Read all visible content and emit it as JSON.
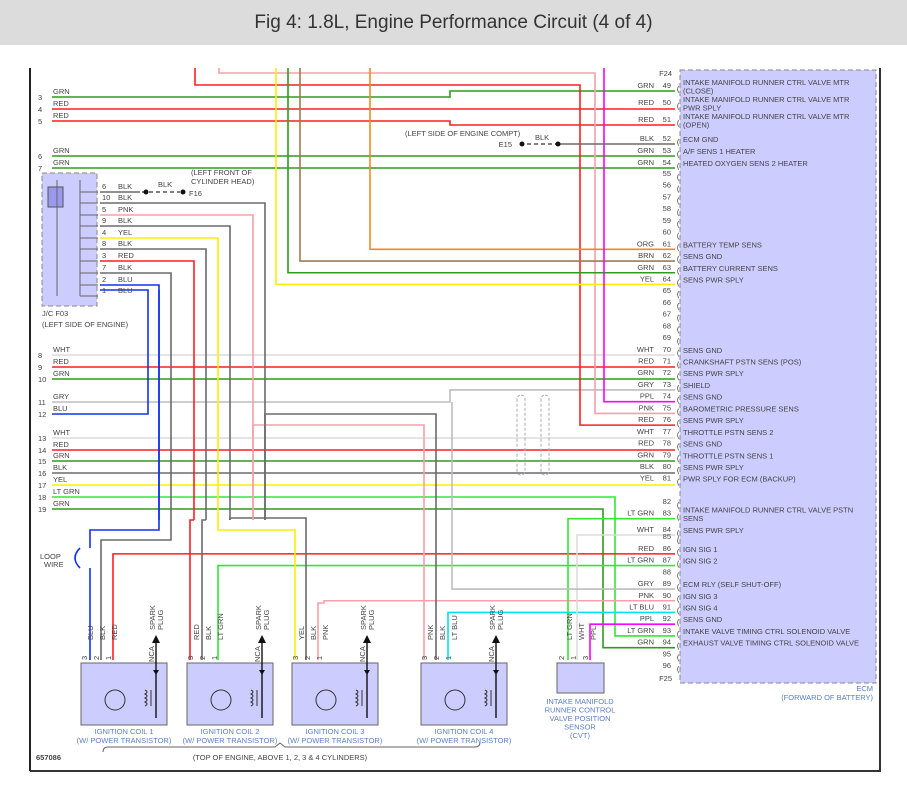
{
  "title": "Fig 4: 1.8L, Engine Performance Circuit (4 of 4)",
  "figure_id": "657086",
  "wire_colors": {
    "GRN": "#2f9b1c",
    "RED": "#ff1f1f",
    "LT GRN": "#33e633",
    "BLK": "#6b6b6b",
    "WHT": "#dcdcdc",
    "GRY": "#bdbdbd",
    "PNK": "#f5a0aa",
    "YEL": "#ffee00",
    "ORG": "#f08a20",
    "BRN": "#9c7d4c",
    "PPL": "#ff00ff",
    "LT BLU": "#00e3ef",
    "BLU": "#1432ee"
  },
  "component_fill": "#ccccff",
  "ecm": {
    "name": "ECM",
    "location": "(FORWARD OF BATTERY)",
    "connector_top": "F24",
    "connector_bottom": "F25",
    "pins": [
      {
        "pin": "49",
        "color": "GRN",
        "lines": [
          "INTAKE MANIFOLD RUNNER CTRL VALVE MTR",
          "(CLOSE)"
        ]
      },
      {
        "pin": "50",
        "color": "RED",
        "lines": [
          "INTAKE MANIFOLD RUNNER CTRL VALVE MTR",
          "PWR SPLY"
        ]
      },
      {
        "pin": "51",
        "color": "RED",
        "lines": [
          "INTAKE MANIFOLD RUNNER CTRL VALVE MTR",
          "(OPEN)"
        ]
      },
      {
        "pin": "52",
        "color": "BLK",
        "lines": [
          "ECM GND"
        ]
      },
      {
        "pin": "53",
        "color": "GRN",
        "lines": [
          "A/F SENS 1 HEATER"
        ]
      },
      {
        "pin": "54",
        "color": "GRN",
        "lines": [
          "HEATED OXYGEN SENS 2 HEATER"
        ]
      },
      {
        "pin": "55",
        "color": "",
        "lines": []
      },
      {
        "pin": "56",
        "color": "",
        "lines": []
      },
      {
        "pin": "57",
        "color": "",
        "lines": []
      },
      {
        "pin": "58",
        "color": "",
        "lines": []
      },
      {
        "pin": "59",
        "color": "",
        "lines": []
      },
      {
        "pin": "60",
        "color": "",
        "lines": []
      },
      {
        "pin": "61",
        "color": "ORG",
        "lines": [
          "BATTERY TEMP SENS"
        ]
      },
      {
        "pin": "62",
        "color": "BRN",
        "lines": [
          "SENS GND"
        ]
      },
      {
        "pin": "63",
        "color": "GRN",
        "lines": [
          "BATTERY CURRENT SENS"
        ]
      },
      {
        "pin": "64",
        "color": "YEL",
        "lines": [
          "SENS PWR SPLY"
        ]
      },
      {
        "pin": "65",
        "color": "",
        "lines": []
      },
      {
        "pin": "66",
        "color": "",
        "lines": []
      },
      {
        "pin": "67",
        "color": "",
        "lines": []
      },
      {
        "pin": "68",
        "color": "",
        "lines": []
      },
      {
        "pin": "69",
        "color": "",
        "lines": []
      },
      {
        "pin": "70",
        "color": "WHT",
        "lines": [
          "SENS GND"
        ]
      },
      {
        "pin": "71",
        "color": "RED",
        "lines": [
          "CRANKSHAFT PSTN SENS (POS)"
        ]
      },
      {
        "pin": "72",
        "color": "GRN",
        "lines": [
          "SENS PWR SPLY"
        ]
      },
      {
        "pin": "73",
        "color": "GRY",
        "lines": [
          "SHIELD"
        ]
      },
      {
        "pin": "74",
        "color": "PPL",
        "lines": [
          "SENS GND"
        ]
      },
      {
        "pin": "75",
        "color": "PNK",
        "lines": [
          "BAROMETRIC PRESSURE SENS"
        ]
      },
      {
        "pin": "76",
        "color": "RED",
        "lines": [
          "SENS PWR SPLY"
        ]
      },
      {
        "pin": "77",
        "color": "WHT",
        "lines": [
          "THROTTLE PSTN SENS 2"
        ]
      },
      {
        "pin": "78",
        "color": "RED",
        "lines": [
          "SENS GND"
        ]
      },
      {
        "pin": "79",
        "color": "GRN",
        "lines": [
          "THROTTLE PSTN SENS 1"
        ]
      },
      {
        "pin": "80",
        "color": "BLK",
        "lines": [
          "SENS PWR SPLY"
        ]
      },
      {
        "pin": "81",
        "color": "YEL",
        "lines": [
          "PWR SPLY FOR ECM (BACKUP)"
        ]
      },
      {
        "pin": "82",
        "color": "",
        "lines": []
      },
      {
        "pin": "83",
        "color": "LT GRN",
        "lines": [
          "INTAKE MANIFOLD RUNNER CTRL VALVE PSTN",
          "SENS"
        ]
      },
      {
        "pin": "84",
        "color": "WHT",
        "lines": [
          "SENS PWR SPLY"
        ]
      },
      {
        "pin": "85",
        "color": "",
        "lines": []
      },
      {
        "pin": "86",
        "color": "RED",
        "lines": [
          "IGN SIG 1"
        ]
      },
      {
        "pin": "87",
        "color": "LT GRN",
        "lines": [
          "IGN SIG 2"
        ]
      },
      {
        "pin": "88",
        "color": "",
        "lines": []
      },
      {
        "pin": "89",
        "color": "GRY",
        "lines": [
          "ECM RLY (SELF SHUT-OFF)"
        ]
      },
      {
        "pin": "90",
        "color": "PNK",
        "lines": [
          "IGN SIG 3"
        ]
      },
      {
        "pin": "91",
        "color": "LT BLU",
        "lines": [
          "IGN SIG 4"
        ]
      },
      {
        "pin": "92",
        "color": "PPL",
        "lines": [
          "SENS GND"
        ]
      },
      {
        "pin": "93",
        "color": "LT GRN",
        "lines": [
          "INTAKE VALVE TIMING CTRL SOLENOID VALVE"
        ]
      },
      {
        "pin": "94",
        "color": "GRN",
        "lines": [
          "EXHAUST VALVE TIMING CTRL SOLENOID VALVE"
        ]
      },
      {
        "pin": "95",
        "color": "",
        "lines": []
      },
      {
        "pin": "96",
        "color": "",
        "lines": []
      }
    ]
  },
  "left_wires": [
    {
      "num": "3",
      "color": "GRN"
    },
    {
      "num": "4",
      "color": "RED"
    },
    {
      "num": "5",
      "color": "RED"
    },
    {
      "num": "6",
      "color": "GRN"
    },
    {
      "num": "7",
      "color": "GRN"
    },
    {
      "num": "8",
      "color": "WHT"
    },
    {
      "num": "9",
      "color": "RED"
    },
    {
      "num": "10",
      "color": "GRN"
    },
    {
      "num": "11",
      "color": "GRY"
    },
    {
      "num": "12",
      "color": "BLU"
    },
    {
      "num": "13",
      "color": "WHT"
    },
    {
      "num": "14",
      "color": "RED"
    },
    {
      "num": "15",
      "color": "GRN"
    },
    {
      "num": "16",
      "color": "BLK"
    },
    {
      "num": "17",
      "color": "YEL"
    },
    {
      "num": "18",
      "color": "LT GRN"
    },
    {
      "num": "19",
      "color": "GRN"
    }
  ],
  "jc": {
    "name": "J/C F03",
    "location": "(LEFT SIDE OF ENGINE)",
    "pins": [
      {
        "num": "6",
        "color": "BLK"
      },
      {
        "num": "10",
        "color": "BLK"
      },
      {
        "num": "5",
        "color": "PNK"
      },
      {
        "num": "9",
        "color": "BLK"
      },
      {
        "num": "4",
        "color": "YEL"
      },
      {
        "num": "8",
        "color": "BLK"
      },
      {
        "num": "3",
        "color": "RED"
      },
      {
        "num": "7",
        "color": "BLK"
      },
      {
        "num": "2",
        "color": "BLU"
      },
      {
        "num": "1",
        "color": "BLU"
      }
    ]
  },
  "grounds": {
    "f16": {
      "name": "F16",
      "wire": "BLK",
      "location": [
        "(LEFT FRONT OF",
        "CYLINDER HEAD)"
      ]
    },
    "e15": {
      "name": "E15",
      "wire": "BLK",
      "location": "(LEFT SIDE OF ENGINE COMPT)"
    }
  },
  "loop_wire": [
    "LOOP",
    "WIRE"
  ],
  "coils": [
    {
      "name": "IGNITION COIL 1",
      "sub": "(W/ POWER TRANSISTOR)",
      "pins": [
        {
          "num": "3",
          "color": "BLU"
        },
        {
          "num": "2",
          "color": "BLK"
        },
        {
          "num": "1",
          "color": "RED"
        }
      ]
    },
    {
      "name": "IGNITION COIL 2",
      "sub": "(W/ POWER TRANSISTOR)",
      "pins": [
        {
          "num": "3",
          "color": "RED"
        },
        {
          "num": "2",
          "color": "BLK"
        },
        {
          "num": "1",
          "color": "LT GRN"
        }
      ]
    },
    {
      "name": "IGNITION COIL 3",
      "sub": "(W/ POWER TRANSISTOR)",
      "pins": [
        {
          "num": "3",
          "color": "YEL"
        },
        {
          "num": "2",
          "color": "BLK"
        },
        {
          "num": "1",
          "color": "PNK"
        }
      ]
    },
    {
      "name": "IGNITION COIL 4",
      "sub": "(W/ POWER TRANSISTOR)",
      "pins": [
        {
          "num": "3",
          "color": "PNK"
        },
        {
          "num": "2",
          "color": "BLK"
        },
        {
          "num": "1",
          "color": "LT BLU"
        }
      ]
    }
  ],
  "nca": "NCA",
  "spark_plug": [
    "SPARK",
    "PLUG"
  ],
  "sensor": {
    "lines": [
      "INTAKE MANIFOLD",
      "RUNNER CONTROL",
      "VALVE POSITION",
      "SENSOR",
      "(CVT)"
    ],
    "pins": [
      {
        "num": "2",
        "color": "LT GRN"
      },
      {
        "num": "1",
        "color": "WHT"
      },
      {
        "num": "3",
        "color": "PPL"
      }
    ]
  },
  "coil_location": "(TOP OF ENGINE, ABOVE 1, 2, 3 & 4 CYLINDERS)"
}
